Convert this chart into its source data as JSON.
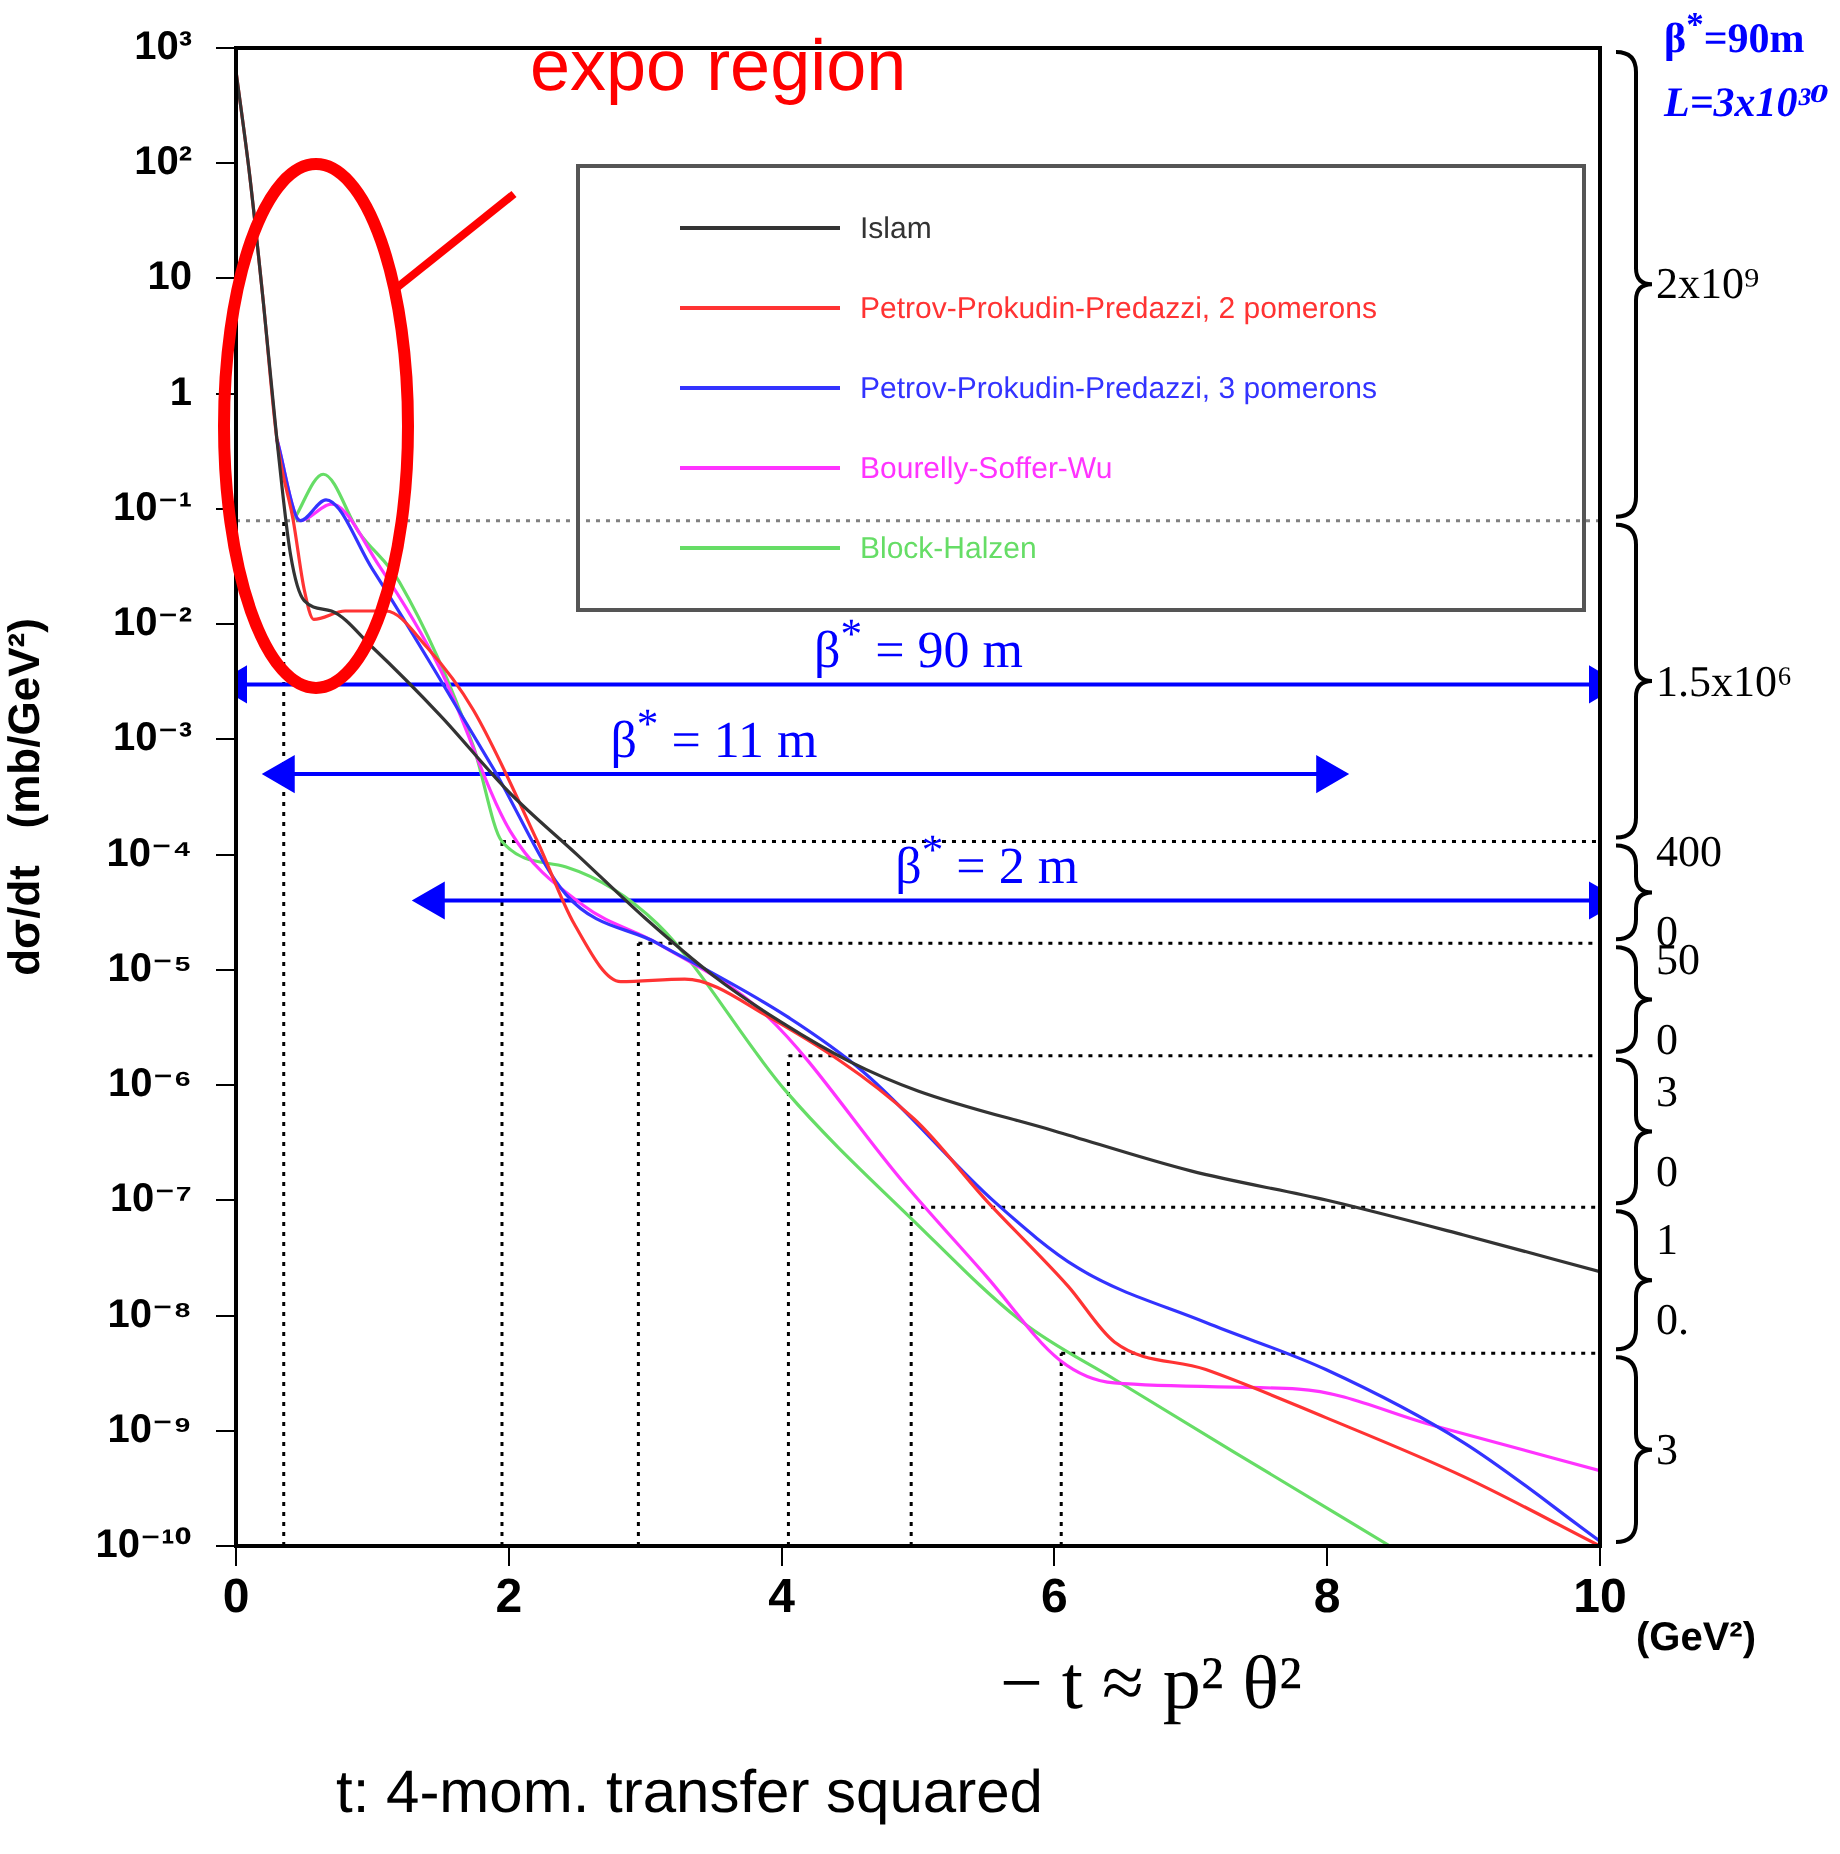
{
  "chart_data": {
    "type": "line",
    "xlabel": "(GeV²)",
    "ylabel": "dσ/dt   (mb/GeV²)",
    "xlim": [
      0,
      10
    ],
    "xticks": [
      0,
      2,
      4,
      6,
      8,
      10
    ],
    "ylim": [
      1e-10,
      1000
    ],
    "yticks": [
      {
        "value": 1000,
        "label": "10³"
      },
      {
        "value": 100,
        "label": "10²"
      },
      10,
      1,
      {
        "value": 0.1,
        "label": "10⁻¹"
      },
      {
        "value": 0.01,
        "label": "10⁻²"
      },
      {
        "value": 0.001,
        "label": "10⁻³"
      },
      {
        "value": 0.0001,
        "label": "10⁻⁴"
      },
      {
        "value": 1e-05,
        "label": "10⁻⁵"
      },
      {
        "value": 1e-06,
        "label": "10⁻⁶"
      },
      {
        "value": 1e-07,
        "label": "10⁻⁷"
      },
      {
        "value": 1e-08,
        "label": "10⁻⁸"
      },
      {
        "value": 1e-09,
        "label": "10⁻⁹"
      },
      {
        "value": 1e-10,
        "label": "10⁻¹⁰"
      }
    ],
    "log": "y",
    "grid": false,
    "legend": "top right",
    "marker": "none",
    "line_style": "solid",
    "series": [
      {
        "name": "Islam",
        "color": "#333333",
        "x": [
          0,
          0.1,
          0.2,
          0.3,
          0.4,
          0.5,
          0.7,
          1,
          1.5,
          2,
          2.5,
          3,
          3.5,
          4,
          4.5,
          5,
          6,
          7,
          8,
          9,
          10
        ],
        "values": [
          630,
          79,
          6.3,
          0.4,
          0.04,
          0.016,
          0.013,
          0.0063,
          0.0016,
          0.00035,
          0.0001,
          2.8e-05,
          8.9e-06,
          3.5e-06,
          1.6e-06,
          8.9e-07,
          4e-07,
          1.8e-07,
          1e-07,
          5e-08,
          2.4e-08
        ]
      },
      {
        "name": "Petrov-Prokudin-Predazzi, 2 pomerons",
        "color": "#ff3333",
        "x": [
          0,
          0.1,
          0.2,
          0.3,
          0.42,
          0.5,
          0.57,
          0.8,
          1.1,
          1.4,
          1.74,
          2.21,
          2.48,
          2.82,
          3.29,
          3.89,
          4.97,
          5.5,
          6.1,
          6.44,
          7.11,
          7.99,
          9,
          10
        ],
        "values": [
          630,
          79,
          6.3,
          0.4,
          0.079,
          0.02,
          0.011,
          0.013,
          0.013,
          0.0063,
          0.0018,
          0.00013,
          2.5e-05,
          7.9e-06,
          8.3e-06,
          4e-06,
          5.1e-07,
          1e-07,
          1.8e-08,
          5.9e-09,
          3.4e-09,
          1.3e-09,
          4e-10,
          1e-10
        ]
      },
      {
        "name": "Petrov-Prokudin-Predazzi, 3 pomerons",
        "color": "#3333ff",
        "x": [
          0.3,
          0.47,
          0.66,
          1,
          1.45,
          1.89,
          2.42,
          3.09,
          4.03,
          4.6,
          5.57,
          6.17,
          7.11,
          7.99,
          9,
          10
        ],
        "values": [
          0.4,
          0.079,
          0.12,
          0.03,
          0.0041,
          0.00055,
          4.5e-05,
          1.7e-05,
          4e-06,
          1.3e-06,
          9.5e-08,
          2.6e-08,
          8.7e-09,
          3.4e-09,
          7.9e-10,
          1.1e-10
        ]
      },
      {
        "name": "Bourelly-Soffer-Wu",
        "color": "#ff33ff",
        "x": [
          0.3,
          0.47,
          0.7,
          1.05,
          1.5,
          2.01,
          2.55,
          3.09,
          3.89,
          4.9,
          5.5,
          6.04,
          6.44,
          7.79,
          8.79,
          10
        ],
        "values": [
          0.4,
          0.079,
          0.11,
          0.032,
          0.004,
          0.00016,
          3.6e-05,
          1.7e-05,
          4e-06,
          1.4e-07,
          2.2e-08,
          4.1e-09,
          2.6e-09,
          2.3e-09,
          1.1e-09,
          4.5e-10
        ]
      },
      {
        "name": "Block-Halzen",
        "color": "#66dd66",
        "x": [
          0.42,
          0.64,
          0.9,
          1.2,
          1.74,
          1.95,
          2.42,
          3.09,
          4.03,
          4.97,
          5.77,
          6.44,
          7.32,
          8.46
        ],
        "values": [
          0.079,
          0.2,
          0.063,
          0.023,
          0.00087,
          0.00013,
          7.8e-05,
          2.5e-05,
          8.9e-07,
          6.6e-08,
          8.7e-09,
          2.8e-09,
          6.5e-10,
          1e-10
        ]
      },
      {
        "type": "line",
        "color": "#0000ff",
        "marker": "triangle",
        "x": [
          0,
          10
        ],
        "values": [
          0.003,
          0.003
        ]
      },
      {
        "type": "line",
        "color": "#0000ff",
        "marker": "triangle",
        "x": [
          0.35,
          8
        ],
        "values": [
          0.0005,
          0.0005
        ]
      },
      {
        "type": "line",
        "color": "#0000ff",
        "marker": "triangle",
        "x": [
          1.45,
          10
        ],
        "values": [
          4e-05,
          4e-05
        ]
      }
    ],
    "ref_lines": [
      {
        "axis": "x",
        "value": 0.35,
        "color": "#000000",
        "line_style": "dotted"
      },
      {
        "axis": "x",
        "value": 1.95,
        "color": "#000000",
        "line_style": "dotted"
      },
      {
        "axis": "x",
        "value": 2.95,
        "color": "#000000",
        "line_style": "dotted"
      },
      {
        "axis": "x",
        "value": 4.05,
        "color": "#000000",
        "line_style": "dotted"
      },
      {
        "axis": "x",
        "value": 4.95,
        "color": "#000000",
        "line_style": "dotted"
      },
      {
        "axis": "x",
        "value": 6.05,
        "color": "#000000",
        "line_style": "dotted"
      },
      {
        "axis": "y",
        "value": 0.079,
        "color": "#808080",
        "line_style": "dotted"
      },
      {
        "axis": "y",
        "value": 0.00013,
        "color": "#000000",
        "line_style": "dotted"
      },
      {
        "axis": "y",
        "value": 1.7e-05,
        "color": "#000000",
        "line_style": "dotted"
      },
      {
        "axis": "y",
        "value": 1.8e-06,
        "color": "#000000",
        "line_style": "dotted"
      },
      {
        "axis": "y",
        "value": 8.7e-08,
        "color": "#000000",
        "line_style": "dotted"
      },
      {
        "axis": "y",
        "value": 4.7e-09,
        "color": "#000000",
        "line_style": "dotted"
      }
    ],
    "annotations": [
      "expo region",
      "β$^{*}$=90m",
      "L=3x10³⁰",
      "2x10⁹",
      "1.5x10⁶",
      "400\n0",
      "50\n0",
      "3\n0",
      "1\n0.",
      "3",
      "− t ≈ p² θ²",
      "t: 4-mom. transfer squared",
      {
        "text": "β$^{*}$ = 90 m",
        "x": 5,
        "y": 0.003
      },
      {
        "text": "β$^{*}$ = 11 m",
        "x": 3.5,
        "y": 0.0005
      },
      {
        "text": "β$^{*}$ = 2 m",
        "x": 5.5,
        "y": 4e-05
      }
    ]
  }
}
